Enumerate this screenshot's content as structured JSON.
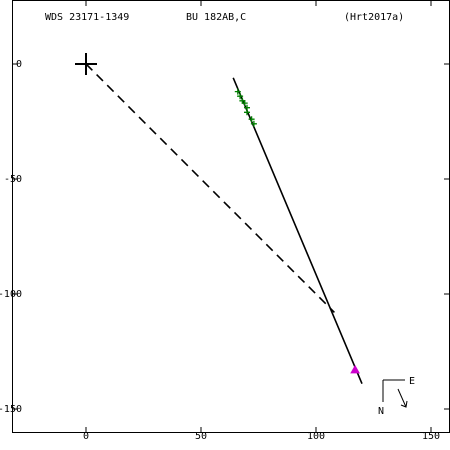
{
  "header": {
    "wds": "WDS 23171-1349",
    "discoverer": "BU  182AB,C",
    "reference": "(Hrt2017a)"
  },
  "compass": {
    "east_label": "E",
    "north_label": "N"
  },
  "chart_data": {
    "type": "scatter",
    "title": "",
    "xlabel": "",
    "ylabel": "",
    "xlim": [
      -35,
      158
    ],
    "ylim": [
      -167,
      25
    ],
    "x_ticks": [
      0,
      50,
      100,
      150
    ],
    "x_tick_labels": [
      "0",
      "50",
      "100",
      "150"
    ],
    "y_ticks": [
      0,
      -50,
      -100,
      -150
    ],
    "y_tick_labels": [
      "0",
      "-50",
      "-100",
      "-150"
    ],
    "primary_marker": {
      "x": 0,
      "y": 0,
      "symbol": "plus"
    },
    "orbit_line": [
      [
        64,
        -6
      ],
      [
        120,
        -139
      ]
    ],
    "dashed_line": [
      [
        0,
        0
      ],
      [
        108,
        -108
      ]
    ],
    "observations": [
      {
        "x": 66,
        "y": -12
      },
      {
        "x": 67,
        "y": -14
      },
      {
        "x": 68,
        "y": -16
      },
      {
        "x": 69,
        "y": -17
      },
      {
        "x": 70,
        "y": -19
      },
      {
        "x": 70,
        "y": -21
      },
      {
        "x": 72,
        "y": -24
      },
      {
        "x": 73,
        "y": -26
      }
    ],
    "latest_point": {
      "x": 117,
      "y": -133
    },
    "grid": false,
    "colors": {
      "axes": "#000000",
      "observations": "#008000",
      "latest_point": "#cc00cc"
    }
  }
}
